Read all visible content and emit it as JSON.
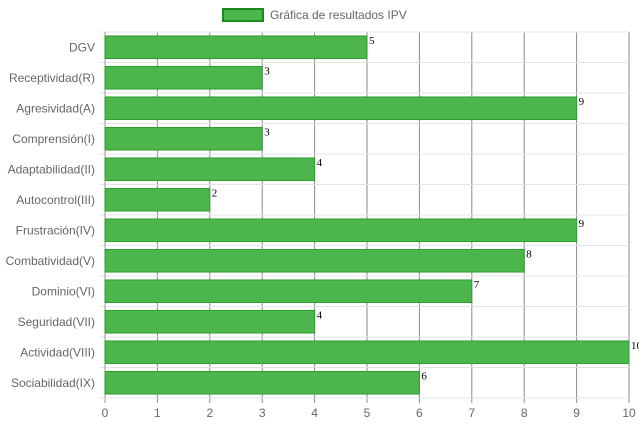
{
  "chart_data": {
    "type": "bar",
    "orientation": "horizontal",
    "categories": [
      "DGV",
      "Receptividad(R)",
      "Agresividad(A)",
      "Comprensión(I)",
      "Adaptabilidad(II)",
      "Autocontrol(III)",
      "Frustración(IV)",
      "Combatividad(V)",
      "Dominio(VI)",
      "Seguridad(VII)",
      "Actividad(VIII)",
      "Sociabilidad(IX)"
    ],
    "series": [
      {
        "name": "Gráfica de resultados IPV",
        "values": [
          5,
          3,
          9,
          3,
          4,
          2,
          9,
          8,
          7,
          4,
          10,
          6
        ]
      }
    ],
    "xlim": [
      0,
      10
    ],
    "xticks": [
      "0",
      "1",
      "2",
      "3",
      "4",
      "5",
      "6",
      "7",
      "8",
      "9",
      "10"
    ],
    "grid": true,
    "legend_position": "top",
    "colors": {
      "bar_fill": "#4cb54c",
      "bar_border": "#2e9e2e",
      "legend_border": "#1a8a1a",
      "grid": "#c8c8c8"
    }
  }
}
